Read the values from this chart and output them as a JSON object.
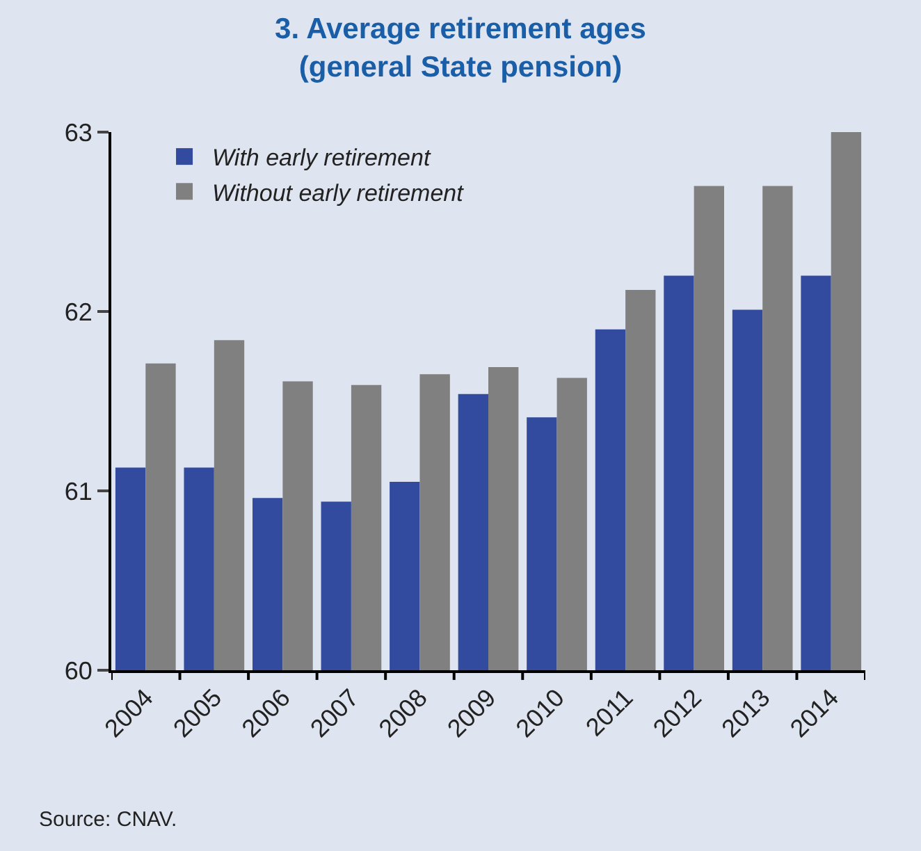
{
  "chart_data": {
    "type": "bar",
    "title": "3. Average retirement ages\n(general State pension)",
    "categories": [
      "2004",
      "2005",
      "2006",
      "2007",
      "2008",
      "2009",
      "2010",
      "2011",
      "2012",
      "2013",
      "2014"
    ],
    "series": [
      {
        "name": "With early retirement",
        "color": "#324b9e",
        "values": [
          61.13,
          61.13,
          60.96,
          60.94,
          61.05,
          61.54,
          61.41,
          61.9,
          62.2,
          62.01,
          62.2
        ]
      },
      {
        "name": "Without early retirement",
        "color": "#808080",
        "values": [
          61.71,
          61.84,
          61.61,
          61.59,
          61.65,
          61.69,
          61.63,
          62.12,
          62.7,
          62.7,
          63.0
        ]
      }
    ],
    "ylim": [
      60,
      63
    ],
    "yticks": [
      60,
      61,
      62,
      63
    ],
    "grid": false,
    "legend": "top left",
    "annotations": [
      "Source: CNAV."
    ]
  }
}
